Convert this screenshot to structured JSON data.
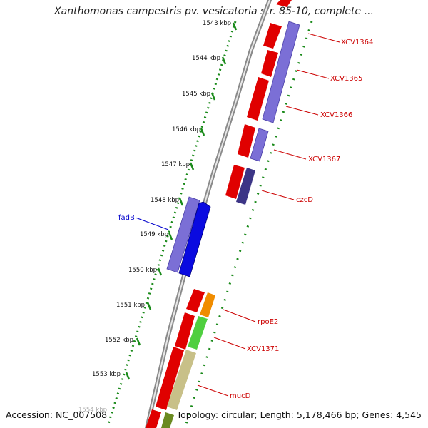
{
  "title": "Xanthomonas campestris pv. vesicatoria str. 85-10, complete ...",
  "footer": {
    "accession": "Accession: NC_007508",
    "summary": "Topology: circular; Length: 5,178,466 bp; Genes: 4,545"
  },
  "ruler": {
    "ticks": [
      "1543 kbp",
      "1544 kbp",
      "1545 kbp",
      "1546 kbp",
      "1547 kbp",
      "1548 kbp",
      "1549 kbp",
      "1550 kbp",
      "1551 kbp",
      "1552 kbp",
      "1553 kbp",
      "1554 kbp"
    ]
  },
  "gene_labels": [
    {
      "name": "XCV1364",
      "color": "#cc0000"
    },
    {
      "name": "XCV1365",
      "color": "#cc0000"
    },
    {
      "name": "XCV1366",
      "color": "#cc0000"
    },
    {
      "name": "XCV1367",
      "color": "#cc0000"
    },
    {
      "name": "czcD",
      "color": "#cc0000"
    },
    {
      "name": "fadB",
      "color": "#0000cc"
    },
    {
      "name": "rpoE2",
      "color": "#cc0000"
    },
    {
      "name": "XCV1371",
      "color": "#cc0000"
    },
    {
      "name": "mucD",
      "color": "#cc0000"
    }
  ],
  "colors": {
    "red_feature": "#e00000",
    "blue_feature": "#7b6fd6",
    "dark_blue_feature": "#0a0ae0",
    "navy_feature": "#3c3586",
    "orange_feature": "#f08c00",
    "green_feature": "#4fcf3f",
    "tan_feature": "#c8c088",
    "olive_feature": "#6a8a20",
    "ruler_dots": "#1a8a1a",
    "backbone": "#8a8a8a"
  }
}
